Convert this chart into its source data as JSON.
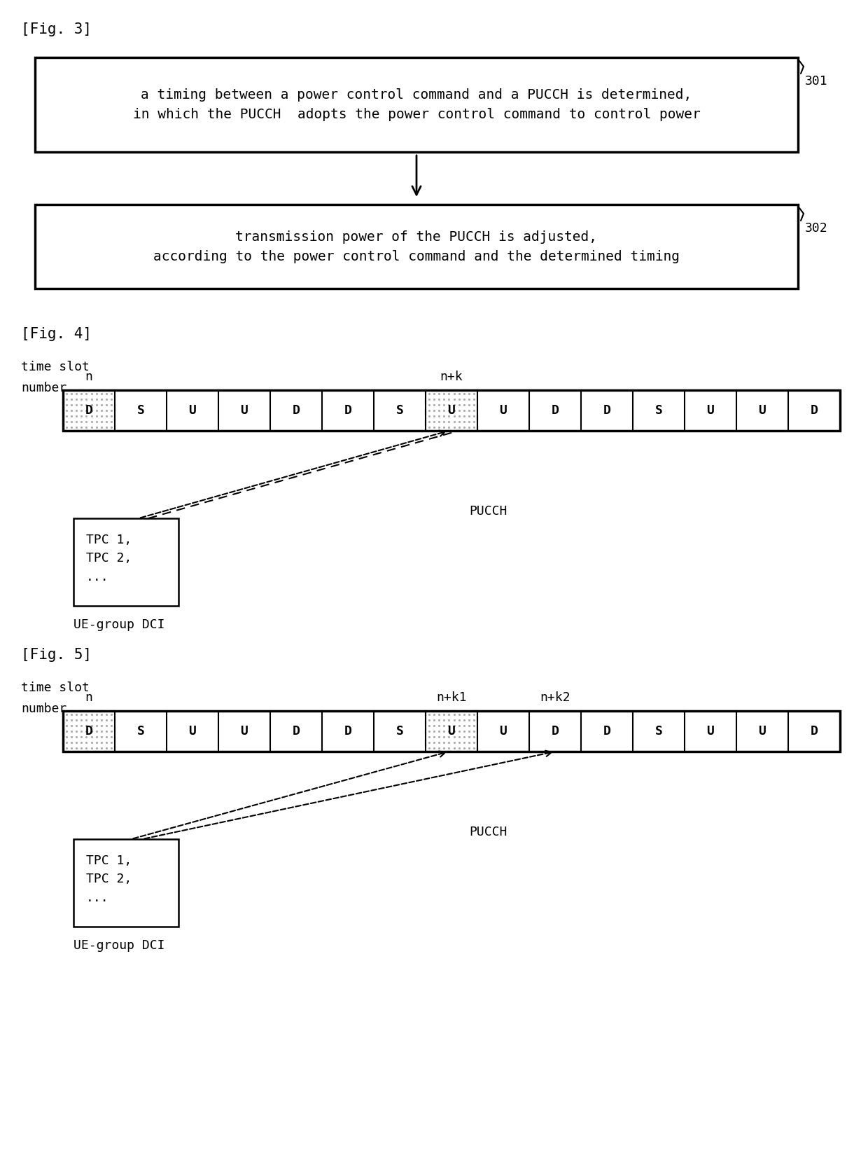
{
  "fig3_label": "[Fig. 3]",
  "fig4_label": "[Fig. 4]",
  "fig5_label": "[Fig. 5]",
  "box301_text": "a timing between a power control command and a PUCCH is determined,\nin which the PUCCH  adopts the power control command to control power",
  "box301_label": "301",
  "box302_text": "transmission power of the PUCCH is adjusted,\naccording to the power control command and the determined timing",
  "box302_label": "302",
  "fig4_slots": [
    "D",
    "S",
    "U",
    "U",
    "D",
    "D",
    "S",
    "U",
    "U",
    "D",
    "D",
    "S",
    "U",
    "U",
    "D"
  ],
  "fig5_slots": [
    "D",
    "S",
    "U",
    "U",
    "D",
    "D",
    "S",
    "U",
    "U",
    "D",
    "D",
    "S",
    "U",
    "U",
    "D"
  ],
  "fig4_dotted_idx": 0,
  "fig4_pucch_idx": 7,
  "fig5_dotted_idx": 0,
  "fig5_pucch_idx": 7,
  "fig5_nk2_idx": 9,
  "slot_n_label": "n",
  "fig4_nk_label": "n+k",
  "fig5_nk1_label": "n+k1",
  "fig5_nk2_label": "n+k2",
  "timeslot_label1": "time slot",
  "timeslot_label2": "number",
  "pucch_label": "PUCCH",
  "ue_group_label": "UE-group DCI",
  "tpc_box_text": "TPC 1,\nTPC 2,\n...",
  "bg_color": "#ffffff",
  "font_size_main": 14,
  "font_size_slot": 13,
  "font_size_label": 15,
  "font_size_anno": 13
}
